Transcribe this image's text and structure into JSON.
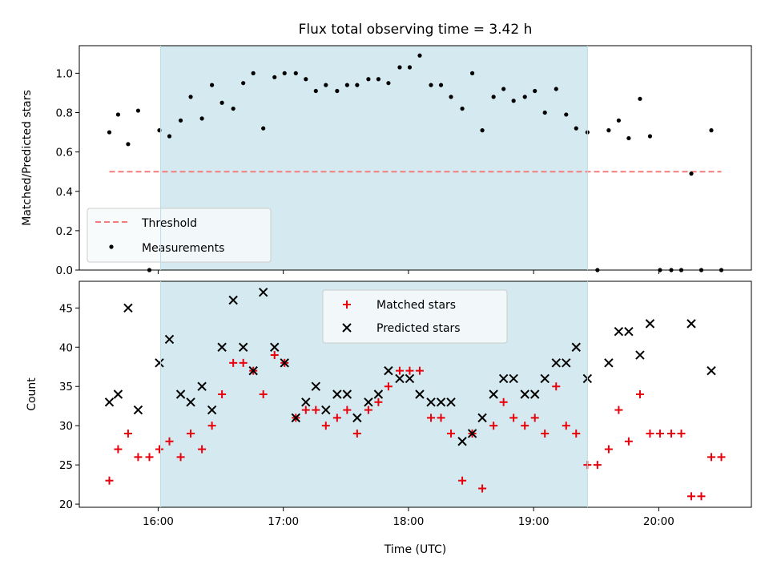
{
  "chart_data": [
    {
      "type": "scatter",
      "title": "Flux total observing time = 3.42 h",
      "xlabel": "",
      "ylabel": "Matched/Predicted stars",
      "xlim": [
        15.37,
        20.74
      ],
      "ylim": [
        0.0,
        1.14
      ],
      "yticks": [
        0.0,
        0.2,
        0.4,
        0.6,
        0.8,
        1.0
      ],
      "ytick_labels": [
        "0.0",
        "0.2",
        "0.4",
        "0.6",
        "0.8",
        "1.0"
      ],
      "xticks": [
        16,
        17,
        18,
        19,
        20
      ],
      "shaded_region": {
        "x_start": 16.02,
        "x_end": 19.43,
        "color": "#d4eaf0"
      },
      "threshold": {
        "name": "Threshold",
        "y": 0.5,
        "x_start": 15.61,
        "x_end": 20.5,
        "color": "#f47c7c"
      },
      "legend": {
        "position": "lower-left",
        "entries": [
          "Threshold",
          "Measurements"
        ]
      },
      "series": [
        {
          "name": "Measurements",
          "marker": "dot",
          "color": "#000000",
          "points": [
            [
              15.61,
              0.7
            ],
            [
              15.68,
              0.79
            ],
            [
              15.76,
              0.64
            ],
            [
              15.84,
              0.81
            ],
            [
              15.93,
              0.0
            ],
            [
              16.01,
              0.71
            ],
            [
              16.09,
              0.68
            ],
            [
              16.18,
              0.76
            ],
            [
              16.26,
              0.88
            ],
            [
              16.35,
              0.77
            ],
            [
              16.43,
              0.94
            ],
            [
              16.51,
              0.85
            ],
            [
              16.6,
              0.82
            ],
            [
              16.68,
              0.95
            ],
            [
              16.76,
              1.0
            ],
            [
              16.84,
              0.72
            ],
            [
              16.93,
              0.98
            ],
            [
              17.01,
              1.0
            ],
            [
              17.1,
              1.0
            ],
            [
              17.18,
              0.97
            ],
            [
              17.26,
              0.91
            ],
            [
              17.34,
              0.94
            ],
            [
              17.43,
              0.91
            ],
            [
              17.51,
              0.94
            ],
            [
              17.59,
              0.94
            ],
            [
              17.68,
              0.97
            ],
            [
              17.76,
              0.97
            ],
            [
              17.84,
              0.95
            ],
            [
              17.93,
              1.03
            ],
            [
              18.01,
              1.03
            ],
            [
              18.09,
              1.09
            ],
            [
              18.18,
              0.94
            ],
            [
              18.26,
              0.94
            ],
            [
              18.34,
              0.88
            ],
            [
              18.43,
              0.82
            ],
            [
              18.51,
              1.0
            ],
            [
              18.59,
              0.71
            ],
            [
              18.68,
              0.88
            ],
            [
              18.76,
              0.92
            ],
            [
              18.84,
              0.86
            ],
            [
              18.93,
              0.88
            ],
            [
              19.01,
              0.91
            ],
            [
              19.09,
              0.8
            ],
            [
              19.18,
              0.92
            ],
            [
              19.26,
              0.79
            ],
            [
              19.34,
              0.72
            ],
            [
              19.43,
              0.7
            ],
            [
              19.51,
              0.0
            ],
            [
              19.6,
              0.71
            ],
            [
              19.68,
              0.76
            ],
            [
              19.76,
              0.67
            ],
            [
              19.85,
              0.87
            ],
            [
              19.93,
              0.68
            ],
            [
              20.01,
              0.0
            ],
            [
              20.1,
              0.0
            ],
            [
              20.18,
              0.0
            ],
            [
              20.26,
              0.49
            ],
            [
              20.34,
              0.0
            ],
            [
              20.42,
              0.71
            ],
            [
              20.5,
              0.0
            ]
          ]
        }
      ]
    },
    {
      "type": "scatter",
      "title": "",
      "xlabel": "Time (UTC)",
      "ylabel": "Count",
      "xlim": [
        15.37,
        20.74
      ],
      "ylim": [
        19.6,
        48.4
      ],
      "yticks": [
        20,
        25,
        30,
        35,
        40,
        45
      ],
      "ytick_labels": [
        "20",
        "25",
        "30",
        "35",
        "40",
        "45"
      ],
      "xticks": [
        16,
        17,
        18,
        19,
        20
      ],
      "xtick_labels": [
        "16:00",
        "17:00",
        "18:00",
        "19:00",
        "20:00"
      ],
      "shaded_region": {
        "x_start": 16.02,
        "x_end": 19.43,
        "color": "#d4eaf0"
      },
      "legend": {
        "position": "upper-center",
        "entries": [
          "Matched stars",
          "Predicted stars"
        ]
      },
      "series": [
        {
          "name": "Matched stars",
          "marker": "plus",
          "color": "#e8000b",
          "points": [
            [
              15.61,
              23
            ],
            [
              15.68,
              27
            ],
            [
              15.76,
              29
            ],
            [
              15.84,
              26
            ],
            [
              15.93,
              26
            ],
            [
              16.01,
              27
            ],
            [
              16.09,
              28
            ],
            [
              16.18,
              26
            ],
            [
              16.26,
              29
            ],
            [
              16.35,
              27
            ],
            [
              16.43,
              30
            ],
            [
              16.51,
              34
            ],
            [
              16.6,
              38
            ],
            [
              16.68,
              38
            ],
            [
              16.76,
              37
            ],
            [
              16.84,
              34
            ],
            [
              16.93,
              39
            ],
            [
              17.01,
              38
            ],
            [
              17.1,
              31
            ],
            [
              17.18,
              32
            ],
            [
              17.26,
              32
            ],
            [
              17.34,
              30
            ],
            [
              17.43,
              31
            ],
            [
              17.51,
              32
            ],
            [
              17.59,
              29
            ],
            [
              17.68,
              32
            ],
            [
              17.76,
              33
            ],
            [
              17.84,
              35
            ],
            [
              17.93,
              37
            ],
            [
              18.01,
              37
            ],
            [
              18.09,
              37
            ],
            [
              18.18,
              31
            ],
            [
              18.26,
              31
            ],
            [
              18.34,
              29
            ],
            [
              18.43,
              23
            ],
            [
              18.51,
              29
            ],
            [
              18.59,
              22
            ],
            [
              18.68,
              30
            ],
            [
              18.76,
              33
            ],
            [
              18.84,
              31
            ],
            [
              18.93,
              30
            ],
            [
              19.01,
              31
            ],
            [
              19.09,
              29
            ],
            [
              19.18,
              35
            ],
            [
              19.26,
              30
            ],
            [
              19.34,
              29
            ],
            [
              19.43,
              25
            ],
            [
              19.51,
              25
            ],
            [
              19.6,
              27
            ],
            [
              19.68,
              32
            ],
            [
              19.76,
              28
            ],
            [
              19.85,
              34
            ],
            [
              19.93,
              29
            ],
            [
              20.01,
              29
            ],
            [
              20.1,
              29
            ],
            [
              20.18,
              29
            ],
            [
              20.26,
              21
            ],
            [
              20.34,
              21
            ],
            [
              20.42,
              26
            ],
            [
              20.5,
              26
            ]
          ]
        },
        {
          "name": "Predicted stars",
          "marker": "x",
          "color": "#000000",
          "points": [
            [
              15.61,
              33
            ],
            [
              15.68,
              34
            ],
            [
              15.76,
              45
            ],
            [
              15.84,
              32
            ],
            [
              16.01,
              38
            ],
            [
              16.09,
              41
            ],
            [
              16.18,
              34
            ],
            [
              16.26,
              33
            ],
            [
              16.35,
              35
            ],
            [
              16.43,
              32
            ],
            [
              16.51,
              40
            ],
            [
              16.6,
              46
            ],
            [
              16.68,
              40
            ],
            [
              16.76,
              37
            ],
            [
              16.84,
              47
            ],
            [
              16.93,
              40
            ],
            [
              17.01,
              38
            ],
            [
              17.1,
              31
            ],
            [
              17.18,
              33
            ],
            [
              17.26,
              35
            ],
            [
              17.34,
              32
            ],
            [
              17.43,
              34
            ],
            [
              17.51,
              34
            ],
            [
              17.59,
              31
            ],
            [
              17.68,
              33
            ],
            [
              17.76,
              34
            ],
            [
              17.84,
              37
            ],
            [
              17.93,
              36
            ],
            [
              18.01,
              36
            ],
            [
              18.09,
              34
            ],
            [
              18.18,
              33
            ],
            [
              18.26,
              33
            ],
            [
              18.34,
              33
            ],
            [
              18.43,
              28
            ],
            [
              18.51,
              29
            ],
            [
              18.59,
              31
            ],
            [
              18.68,
              34
            ],
            [
              18.76,
              36
            ],
            [
              18.84,
              36
            ],
            [
              18.93,
              34
            ],
            [
              19.01,
              34
            ],
            [
              19.09,
              36
            ],
            [
              19.18,
              38
            ],
            [
              19.26,
              38
            ],
            [
              19.34,
              40
            ],
            [
              19.43,
              36
            ],
            [
              19.6,
              38
            ],
            [
              19.68,
              42
            ],
            [
              19.76,
              42
            ],
            [
              19.85,
              39
            ],
            [
              19.93,
              43
            ],
            [
              20.26,
              43
            ],
            [
              20.42,
              37
            ]
          ]
        }
      ]
    }
  ]
}
